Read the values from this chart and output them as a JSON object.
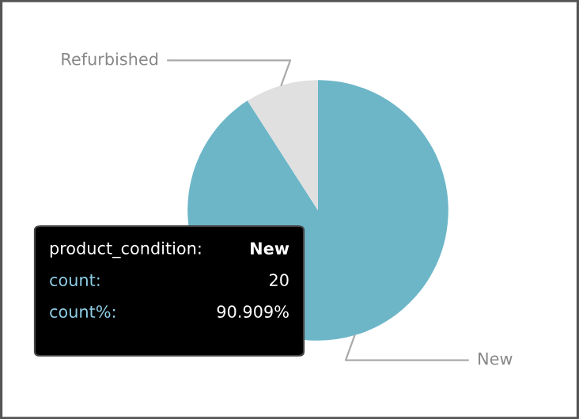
{
  "chart_data": {
    "type": "pie",
    "categories": [
      "Refurbished",
      "New"
    ],
    "values": [
      9.091,
      90.909
    ],
    "colors": [
      "#e0e0e0",
      "#6cb6c8"
    ],
    "annotations": [
      "product_condition:",
      "New",
      "count:",
      "20",
      "count%:",
      "90.909%"
    ]
  }
}
